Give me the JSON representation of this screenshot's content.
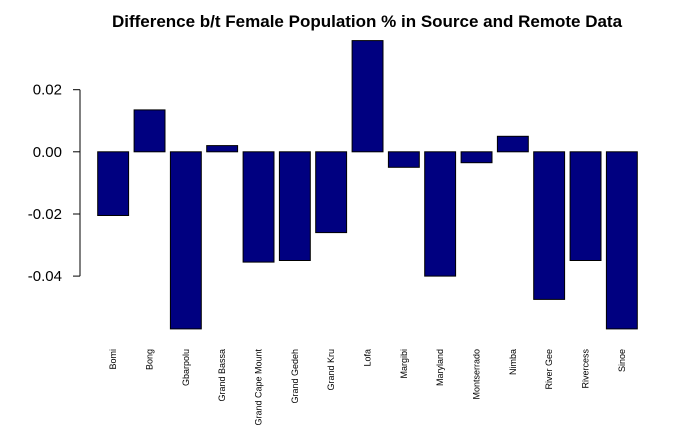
{
  "chart_data": {
    "type": "bar",
    "title": "Difference b/t Female Population % in Source and Remote Data",
    "xlabel": "",
    "ylabel": "",
    "categories": [
      "Bomi",
      "Bong",
      "Gbarpolu",
      "Grand Bassa",
      "Grand Cape Mount",
      "Grand Gedeh",
      "Grand Kru",
      "Lofa",
      "Margibi",
      "Maryland",
      "Montserrado",
      "Nimba",
      "River Gee",
      "Rivercess",
      "Sinoe"
    ],
    "values": [
      -0.0205,
      0.0135,
      -0.057,
      0.002,
      -0.0355,
      -0.035,
      -0.026,
      0.0358,
      -0.005,
      -0.04,
      -0.0035,
      0.005,
      -0.0475,
      -0.035,
      -0.057
    ],
    "ylim": [
      -0.058,
      0.036
    ],
    "yticks": [
      -0.04,
      -0.02,
      0.0,
      0.02
    ],
    "ytick_labels": [
      "-0.04",
      "-0.02",
      "0.00",
      "0.02"
    ],
    "bar_color": "#000080",
    "grid": false
  }
}
